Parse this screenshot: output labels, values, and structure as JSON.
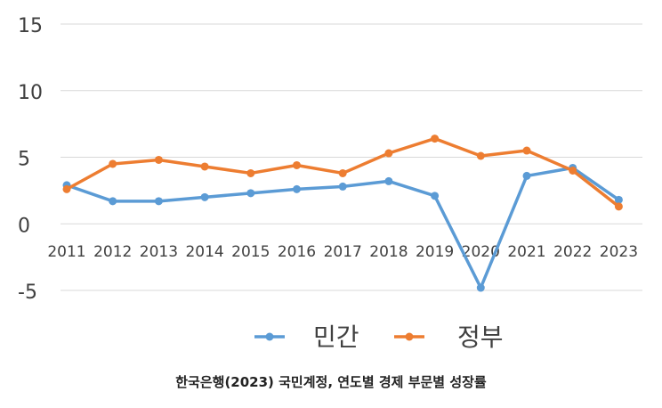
{
  "chart_data": {
    "type": "line",
    "title": "",
    "xlabel": "",
    "ylabel": "",
    "categories": [
      "2011",
      "2012",
      "2013",
      "2014",
      "2015",
      "2016",
      "2017",
      "2018",
      "2019",
      "2020",
      "2021",
      "2022",
      "2023"
    ],
    "series": [
      {
        "name": "민간",
        "color": "#5b9bd5",
        "values": [
          2.9,
          1.7,
          1.7,
          2.0,
          2.3,
          2.6,
          2.8,
          3.2,
          2.1,
          -4.8,
          3.6,
          4.2,
          1.8
        ]
      },
      {
        "name": "정부",
        "color": "#ed7d31",
        "values": [
          2.6,
          4.5,
          4.8,
          4.3,
          3.8,
          4.4,
          3.8,
          5.3,
          6.4,
          5.1,
          5.5,
          4.0,
          1.3
        ]
      }
    ],
    "ylim": [
      -5,
      15
    ],
    "yticks": [
      "15",
      "10",
      "5",
      "0",
      "-5"
    ],
    "ytick_values": [
      15,
      10,
      5,
      0,
      -5
    ],
    "grid": true,
    "legend": "bottom"
  },
  "caption": "한국은행(2023) 국민계정, 연도별 경제 부문별 성장률"
}
